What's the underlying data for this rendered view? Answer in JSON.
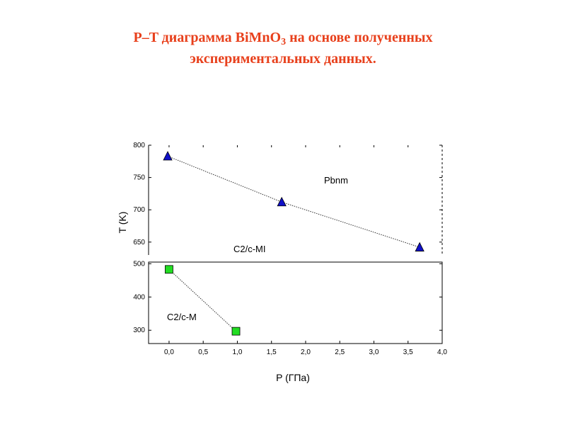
{
  "title": {
    "line1_prefix": "P–T диаграмма BiMnO",
    "line1_sub": "3",
    "line1_suffix": " на основе полученных",
    "line2": "экспериментальных данных."
  },
  "chart_data": {
    "type": "scatter",
    "xlabel": "P  (ГПа)",
    "ylabel": "T  (K)",
    "xlim": [
      -0.3,
      4.0
    ],
    "x_ticks": [
      "0,0",
      "0,5",
      "1,0",
      "1,5",
      "2,0",
      "2,5",
      "3,0",
      "3,5",
      "4,0"
    ],
    "y_ticks_upper": [
      "650",
      "700",
      "750",
      "800"
    ],
    "y_ticks_lower": [
      "300",
      "400",
      "500"
    ],
    "ylim_upper": [
      630,
      800
    ],
    "ylim_lower": [
      260,
      505
    ],
    "broken_y_axis": true,
    "series": [
      {
        "marker": "triangle",
        "color": "#1010c8",
        "x": [
          -0.02,
          1.65,
          3.67
        ],
        "y": [
          783,
          712,
          642
        ]
      },
      {
        "marker": "square",
        "color": "#22dd22",
        "x": [
          0.0,
          0.98
        ],
        "y": [
          483,
          297
        ]
      }
    ],
    "annotations": [
      "Pbnm",
      "C2/c-MI",
      "C2/c-M"
    ]
  }
}
